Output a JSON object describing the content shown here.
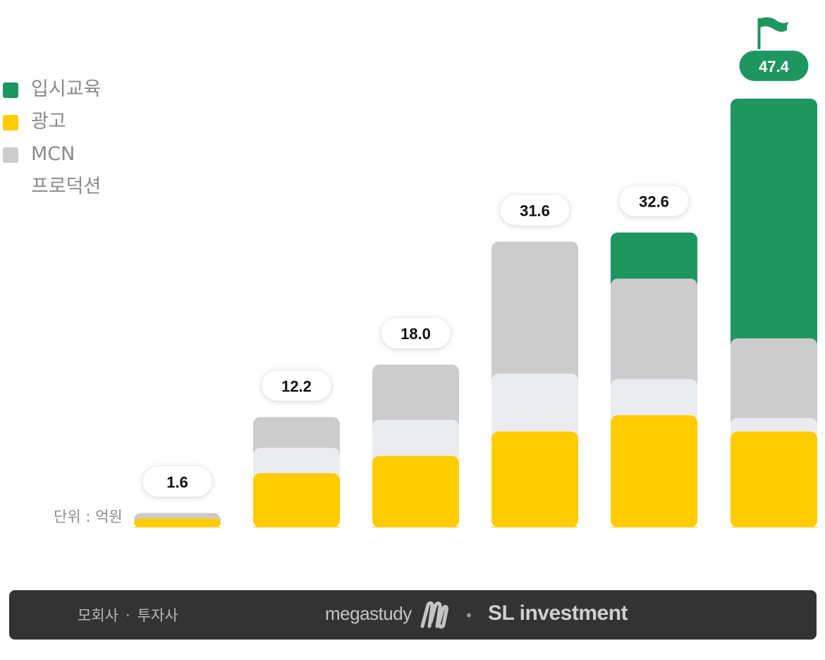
{
  "chart_data": {
    "type": "bar",
    "stacked": true,
    "categories": [
      "",
      "",
      "",
      "",
      "",
      ""
    ],
    "totals": [
      "1.6",
      "12.2",
      "18.0",
      "31.6",
      "32.6",
      "47.4"
    ],
    "series": [
      {
        "name": "광고",
        "color": "#FFCC00",
        "values": [
          1.0,
          6.0,
          7.9,
          10.6,
          12.4,
          10.6
        ]
      },
      {
        "name": "프로덕션",
        "color": "#EBECEF",
        "values": [
          0,
          2.8,
          4.0,
          6.4,
          4.0,
          1.5
        ]
      },
      {
        "name": "MCN",
        "color": "#CCCCCC",
        "values": [
          0.6,
          3.4,
          6.1,
          14.6,
          11.1,
          8.8
        ]
      },
      {
        "name": "입시교육",
        "color": "#1E9660",
        "values": [
          0,
          0,
          0,
          0,
          5.1,
          26.5
        ]
      }
    ],
    "highlight_last": true,
    "unit": "단위 : 억원"
  },
  "legend": [
    {
      "label": "입시교육",
      "color": "#1E9660"
    },
    {
      "label": "광고",
      "color": "#FFCC00"
    },
    {
      "label": "MCN",
      "color": "#CCCCCC"
    },
    {
      "label": "프로덕션",
      "color": ""
    }
  ],
  "footer": {
    "left_a": "모회사",
    "dot": "·",
    "left_b": "투자사",
    "brand1": "megastudy",
    "separator": "•",
    "brand2": "SL investment"
  }
}
